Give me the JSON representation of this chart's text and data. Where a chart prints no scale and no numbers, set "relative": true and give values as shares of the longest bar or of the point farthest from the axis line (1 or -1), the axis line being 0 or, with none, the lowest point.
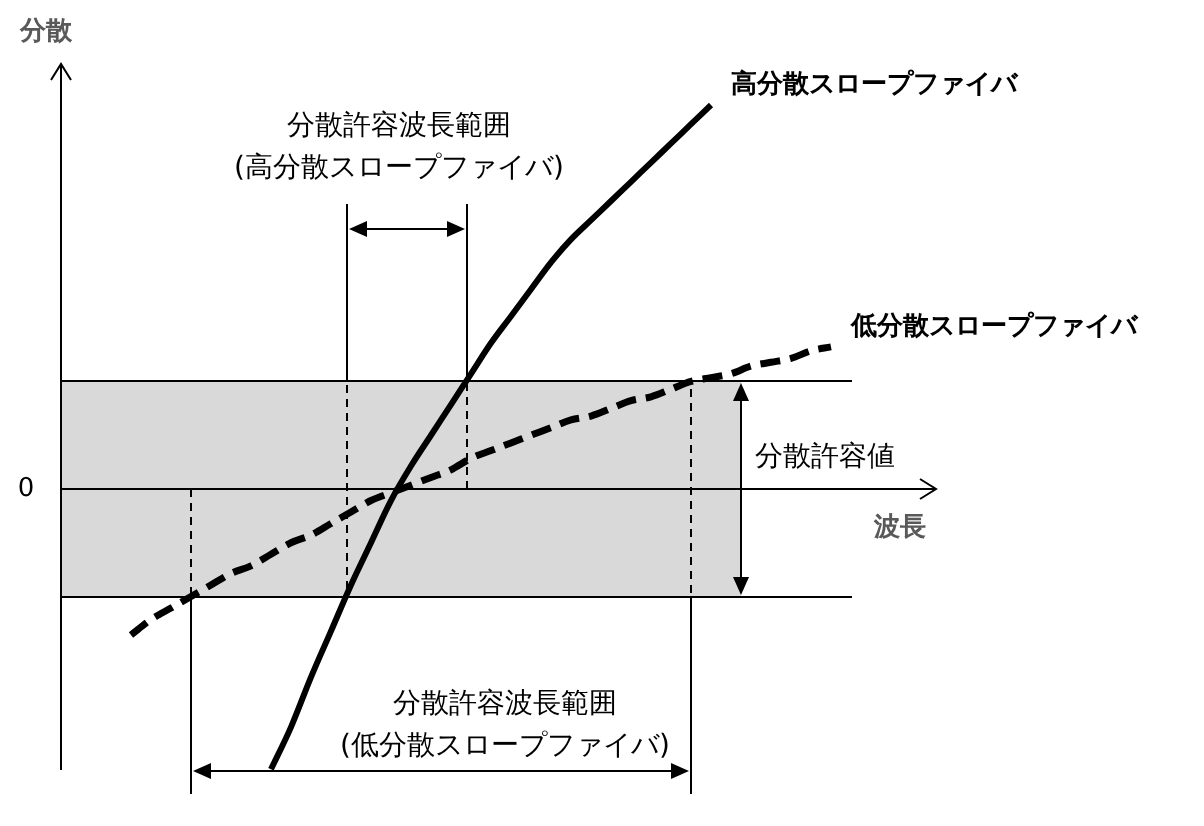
{
  "chart_data": {
    "type": "line",
    "relative": true,
    "xlabel": "波長",
    "ylabel": "分散",
    "categories": [
      null,
      null,
      null,
      null,
      null,
      null,
      null,
      null,
      null,
      null,
      null,
      null,
      null,
      null,
      null,
      null,
      null,
      null,
      null,
      null,
      null,
      null,
      null,
      null,
      null,
      null,
      null,
      null,
      null,
      null,
      null,
      null,
      null,
      null,
      null,
      null,
      null,
      null,
      null
    ],
    "series": [
      {
        "name": "高分散スロープファイバ",
        "color": "#000000",
        "line_style": "solid",
        "values": [
          null,
          null,
          null,
          null,
          null,
          null,
          null,
          null,
          null,
          null,
          -0.73,
          -0.62,
          -0.49,
          -0.37,
          -0.25,
          -0.14,
          -0.03,
          0.06,
          0.14,
          0.22,
          0.3,
          0.38,
          0.45,
          0.52,
          0.59,
          0.65,
          0.7,
          0.75,
          0.8,
          0.85,
          0.9,
          0.95,
          1,
          null,
          null,
          null,
          null,
          null,
          null
        ]
      },
      {
        "name": "低分散スロープファイバ",
        "color": "#000000",
        "line_style": "dashed",
        "values": [
          null,
          null,
          null,
          -0.38,
          -0.34,
          -0.31,
          -0.28,
          -0.25,
          -0.22,
          -0.2,
          -0.17,
          -0.14,
          -0.12,
          -0.09,
          -0.06,
          -0.03,
          -0.01,
          0.01,
          0.03,
          0.05,
          0.08,
          0.1,
          0.12,
          0.14,
          0.16,
          0.18,
          0.19,
          0.21,
          0.23,
          0.24,
          0.26,
          0.28,
          0.29,
          0.3,
          0.32,
          0.33,
          0.34,
          0.36,
          0.37
        ]
      }
    ],
    "bands": [
      {
        "axis": "y",
        "from": -0.28,
        "to": 0.28,
        "label": "分散許容値",
        "color": "#d9d9d9"
      }
    ],
    "annotations": [
      "0",
      "分散許容波長範囲\n(高分散スロープファイバ)",
      "分散許容波長範囲\n(低分散スロープファイバ)"
    ]
  }
}
